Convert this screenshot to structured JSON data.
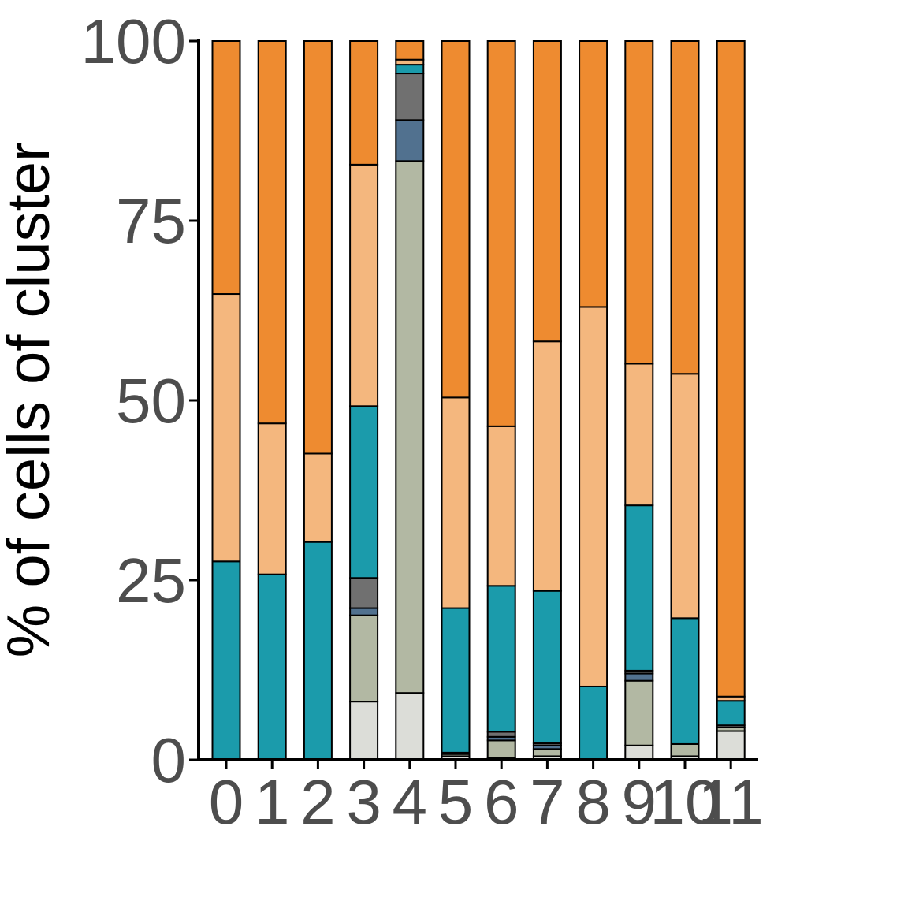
{
  "chart_data": {
    "type": "bar",
    "stacked": true,
    "ylabel": "% of cells of cluster",
    "xlabel": "",
    "ylim": [
      0,
      100
    ],
    "yticks": [
      0,
      25,
      50,
      75,
      100
    ],
    "grid": false,
    "legend": "none",
    "categories": [
      "0",
      "1",
      "2",
      "3",
      "4",
      "5",
      "6",
      "7",
      "8",
      "9",
      "10",
      "11"
    ],
    "series": [
      {
        "color": "#dcddd8",
        "values": [
          0,
          0,
          0,
          8.1,
          9.3,
          0.5,
          0.3,
          0.5,
          0,
          2.0,
          0.5,
          4.0
        ]
      },
      {
        "color": "#b2b8a3",
        "values": [
          0,
          0,
          0,
          12.0,
          74.0,
          0.3,
          2.4,
          1.0,
          0,
          9.0,
          1.7,
          0.5
        ]
      },
      {
        "color": "#51718f",
        "values": [
          0,
          0,
          0,
          1.0,
          5.7,
          0,
          0.5,
          0.5,
          0,
          1.0,
          0,
          0
        ]
      },
      {
        "color": "#707070",
        "values": [
          0,
          0,
          0,
          4.2,
          6.5,
          0.2,
          0.7,
          0.3,
          0,
          0.4,
          0,
          0.3
        ]
      },
      {
        "color": "#1b9bab",
        "values": [
          27.6,
          25.8,
          30.3,
          23.9,
          1.2,
          20.1,
          20.3,
          21.2,
          10.2,
          23.0,
          17.5,
          3.4
        ]
      },
      {
        "color": "#f4b77e",
        "values": [
          37.2,
          21.0,
          12.3,
          33.6,
          0.7,
          29.3,
          22.2,
          34.7,
          52.8,
          19.7,
          34.0,
          0.6
        ]
      },
      {
        "color": "#ee8b30",
        "values": [
          35.2,
          53.2,
          57.4,
          17.2,
          2.6,
          49.6,
          53.6,
          41.8,
          37.0,
          44.9,
          46.3,
          91.2
        ]
      }
    ]
  }
}
